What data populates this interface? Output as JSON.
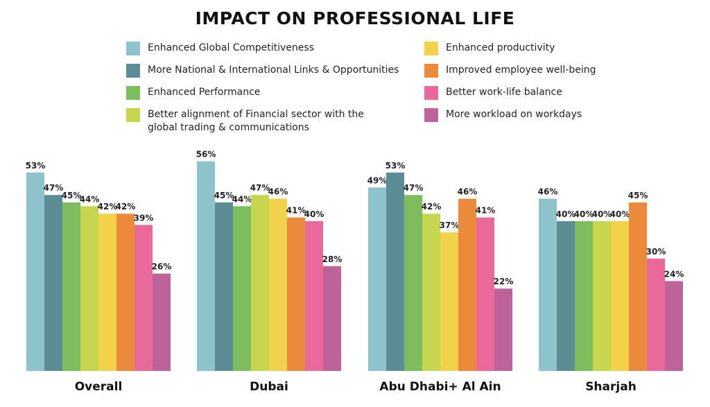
{
  "chart_data": {
    "type": "bar",
    "title": "IMPACT ON PROFESSIONAL LIFE",
    "categories": [
      "Overall",
      "Dubai",
      "Abu Dhabi+ Al Ain",
      "Sharjah"
    ],
    "ylim": [
      0,
      60
    ],
    "grid": false,
    "legend_position": "top",
    "series": [
      {
        "name": "Enhanced Global Competitiveness",
        "color": "#8ec3cc",
        "values": [
          53,
          56,
          49,
          46
        ]
      },
      {
        "name": "More National & International Links & Opportunities",
        "color": "#5a8e94",
        "values": [
          47,
          45,
          53,
          40
        ]
      },
      {
        "name": "Enhanced Performance",
        "color": "#7dbd5e",
        "values": [
          45,
          44,
          47,
          40
        ]
      },
      {
        "name": "Better alignment of Financial sector with the global trading & communications",
        "color": "#c6d64e",
        "values": [
          44,
          47,
          42,
          40
        ]
      },
      {
        "name": "Enhanced productivity",
        "color": "#f2d24a",
        "values": [
          42,
          46,
          37,
          40
        ]
      },
      {
        "name": "Improved employee well-being",
        "color": "#ec8a3c",
        "values": [
          42,
          41,
          46,
          45
        ]
      },
      {
        "name": "Better work-life balance",
        "color": "#e8699a",
        "values": [
          39,
          40,
          41,
          30
        ]
      },
      {
        "name": "More workload on workdays",
        "color": "#bd639a",
        "values": [
          26,
          28,
          22,
          24
        ]
      }
    ]
  }
}
